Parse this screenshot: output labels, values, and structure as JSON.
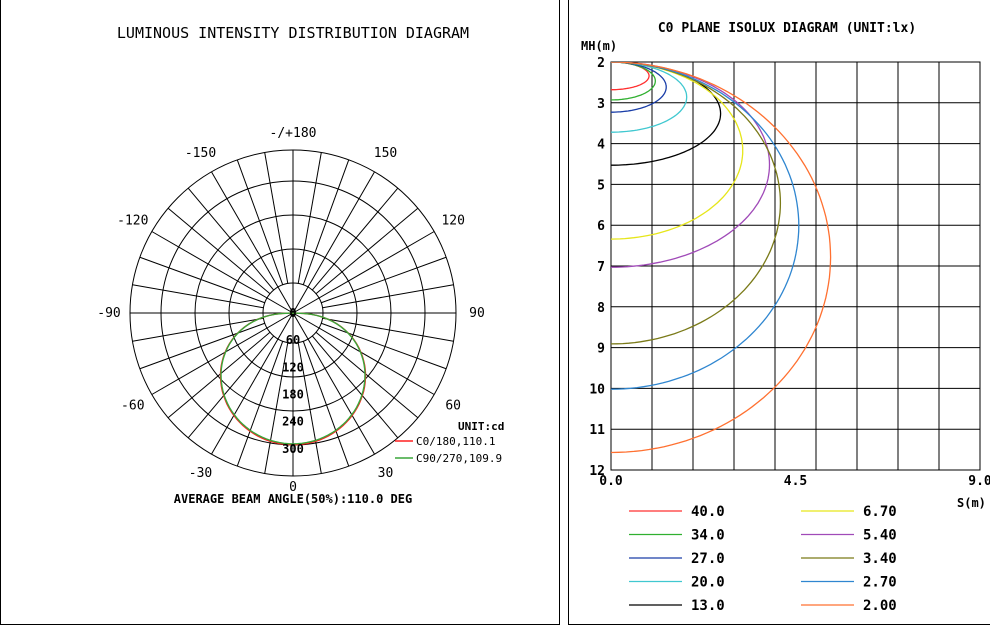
{
  "chart_data": [
    {
      "type": "polar",
      "title": "LUMINOUS INTENSITY DISTRIBUTION DIAGRAM",
      "angle_labels": [
        {
          "angle": 180,
          "text": "-/+180"
        },
        {
          "angle": -150,
          "text": "-150"
        },
        {
          "angle": 150,
          "text": "150"
        },
        {
          "angle": -120,
          "text": "-120"
        },
        {
          "angle": 120,
          "text": "120"
        },
        {
          "angle": -90,
          "text": "-90"
        },
        {
          "angle": 90,
          "text": "90"
        },
        {
          "angle": -60,
          "text": "-60"
        },
        {
          "angle": 60,
          "text": "60"
        },
        {
          "angle": -30,
          "text": "-30"
        },
        {
          "angle": 30,
          "text": "30"
        },
        {
          "angle": 0,
          "text": "0"
        }
      ],
      "radial_ticks": [
        0,
        60,
        120,
        180,
        240,
        300
      ],
      "rmax": 360,
      "unit_label": "UNIT:cd",
      "series": [
        {
          "name": "C0/180,110.1",
          "color": "#ff2020",
          "peak": 291
        },
        {
          "name": "C90/270,109.9",
          "color": "#3aa63a",
          "peak": 289
        }
      ],
      "footer": "AVERAGE BEAM ANGLE(50%):110.0 DEG"
    },
    {
      "type": "isolux",
      "title": "C0 PLANE ISOLUX DIAGRAM (UNIT:lx)",
      "ylabel": "MH(m)",
      "xlabel": "S(m)",
      "y_ticks": [
        "2",
        "3",
        "4",
        "5",
        "6",
        "7",
        "8",
        "9",
        "10",
        "11",
        "12"
      ],
      "x_ticks": [
        "0.0",
        "4.5",
        "9.0"
      ],
      "xlim": [
        0,
        9
      ],
      "ylim": [
        2,
        12
      ],
      "series": [
        {
          "name": "40.0",
          "color": "#ff3030",
          "mh0": 2.68,
          "s0": 0.91
        },
        {
          "name": "34.0",
          "color": "#30b030",
          "mh0": 2.93,
          "s0": 1.06
        },
        {
          "name": "27.0",
          "color": "#1a3ea8",
          "mh0": 3.23,
          "s0": 1.32
        },
        {
          "name": "20.0",
          "color": "#40c8d0",
          "mh0": 3.72,
          "s0": 1.81
        },
        {
          "name": "13.0",
          "color": "#000000",
          "mh0": 4.53,
          "s0": 2.62
        },
        {
          "name": "6.70",
          "color": "#e6e61a",
          "mh0": 6.34,
          "s0": 3.15
        },
        {
          "name": "5.40",
          "color": "#a04ab8",
          "mh0": 7.03,
          "s0": 3.79
        },
        {
          "name": "3.40",
          "color": "#7a7a18",
          "mh0": 8.91,
          "s0": 4.05
        },
        {
          "name": "2.70",
          "color": "#2f86d0",
          "mh0": 10.02,
          "s0": 4.49
        },
        {
          "name": "2.00",
          "color": "#ff7030",
          "mh0": 11.57,
          "s0": 5.25
        }
      ]
    }
  ]
}
